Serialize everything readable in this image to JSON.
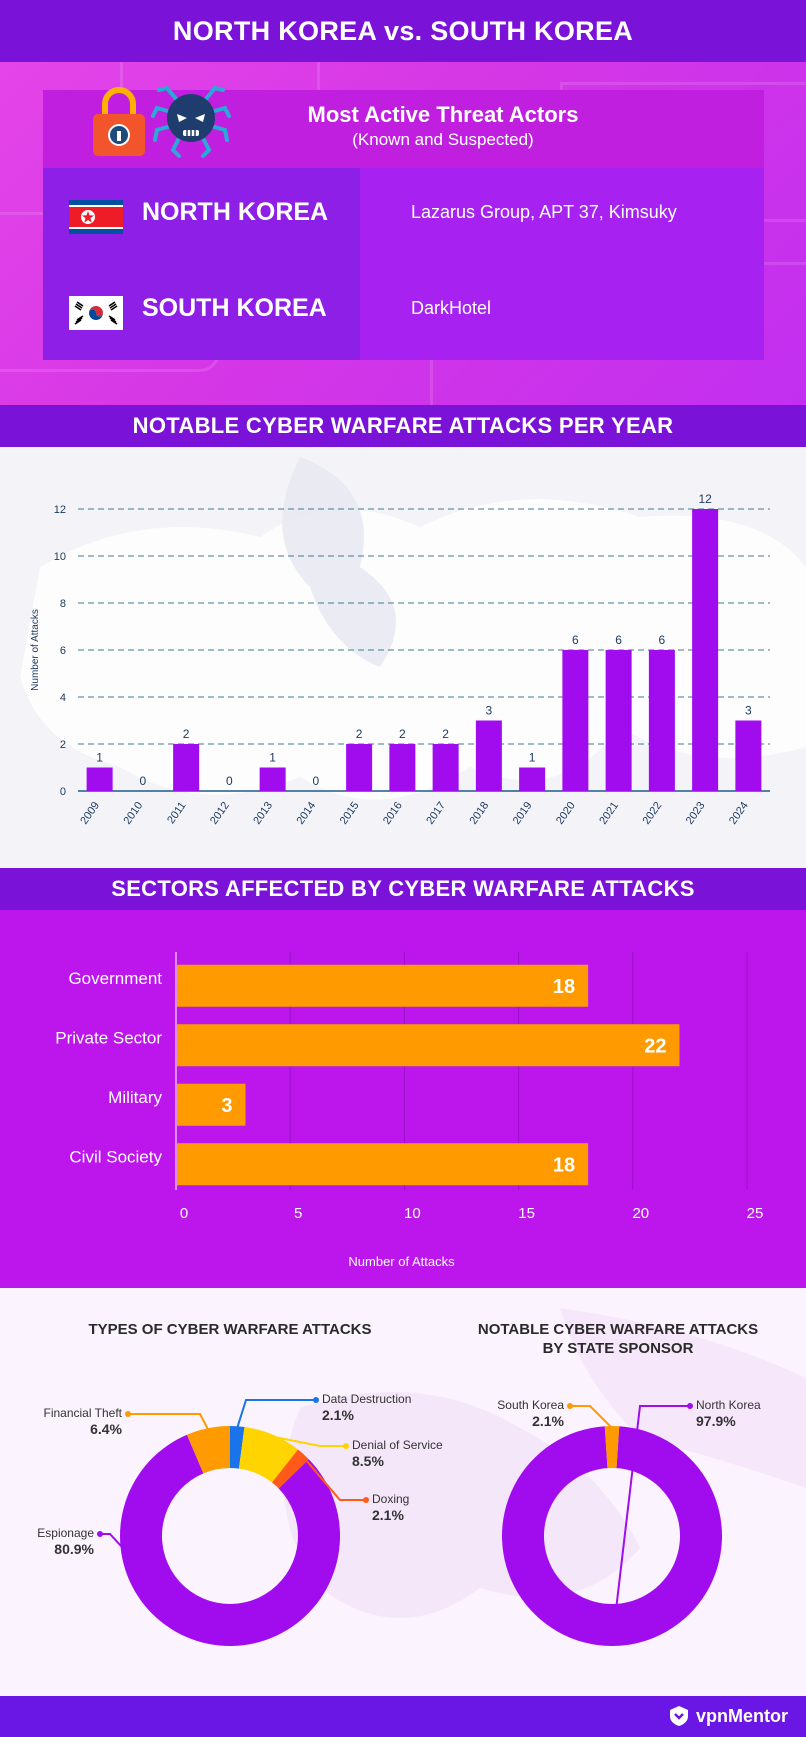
{
  "title": "NORTH KOREA vs. SOUTH KOREA",
  "actors": {
    "title": "Most Active Threat Actors",
    "subtitle": "(Known and Suspected)",
    "rows": [
      {
        "country": "NORTH KOREA",
        "actors": "Lazarus Group, APT 37, Kimsuky"
      },
      {
        "country": "SOUTH KOREA",
        "actors": "DarkHotel"
      }
    ]
  },
  "colors": {
    "header_band": "#7a12d8",
    "purple_bar": "#a10cef",
    "orange": "#ff9a00",
    "yellow": "#ffd400",
    "red_orange": "#ff5a1a",
    "blue": "#1a73e8"
  },
  "chart_data": [
    {
      "type": "bar",
      "title": "NOTABLE CYBER WARFARE ATTACKS PER YEAR",
      "ylabel": "Number of Attacks",
      "xlabel": "",
      "categories": [
        "2009",
        "2010",
        "2011",
        "2012",
        "2013",
        "2014",
        "2015",
        "2016",
        "2017",
        "2018",
        "2019",
        "2020",
        "2021",
        "2022",
        "2023",
        "2024"
      ],
      "values": [
        1,
        0,
        2,
        0,
        1,
        0,
        2,
        2,
        2,
        3,
        1,
        6,
        6,
        6,
        12,
        3
      ],
      "yticks": [
        0,
        2,
        4,
        6,
        8,
        10,
        12
      ],
      "ylim": [
        0,
        12
      ],
      "grid": true
    },
    {
      "type": "bar",
      "orientation": "horizontal",
      "title": "SECTORS AFFECTED BY CYBER WARFARE ATTACKS",
      "xlabel": "Number of Attacks",
      "categories": [
        "Government",
        "Private Sector",
        "Military",
        "Civil Society"
      ],
      "values": [
        18,
        22,
        3,
        18
      ],
      "xticks": [
        0,
        5,
        10,
        15,
        20,
        25
      ],
      "xlim": [
        0,
        25
      ],
      "grid": true
    },
    {
      "type": "pie",
      "title": "TYPES OF CYBER WARFARE ATTACKS",
      "donut": true,
      "slices": [
        {
          "label": "Espionage",
          "value": 80.9,
          "display": "80.9%",
          "color": "#a10cef"
        },
        {
          "label": "Financial Theft",
          "value": 6.4,
          "display": "6.4%",
          "color": "#ff9a00"
        },
        {
          "label": "Data Destruction",
          "value": 2.1,
          "display": "2.1%",
          "color": "#1a73e8"
        },
        {
          "label": "Denial of Service",
          "value": 8.5,
          "display": "8.5%",
          "color": "#ffd400"
        },
        {
          "label": "Doxing",
          "value": 2.1,
          "display": "2.1%",
          "color": "#ff5a1a"
        }
      ]
    },
    {
      "type": "pie",
      "title": "NOTABLE CYBER WARFARE ATTACKS\nBY STATE SPONSOR",
      "title_lines": [
        "NOTABLE CYBER WARFARE ATTACKS",
        "BY STATE SPONSOR"
      ],
      "donut": true,
      "slices": [
        {
          "label": "South Korea",
          "value": 2.1,
          "display": "2.1%",
          "color": "#ff9a00"
        },
        {
          "label": "North Korea",
          "value": 97.9,
          "display": "97.9%",
          "color": "#a10cef"
        }
      ]
    }
  ],
  "footer": {
    "brand": "vpnMentor"
  }
}
